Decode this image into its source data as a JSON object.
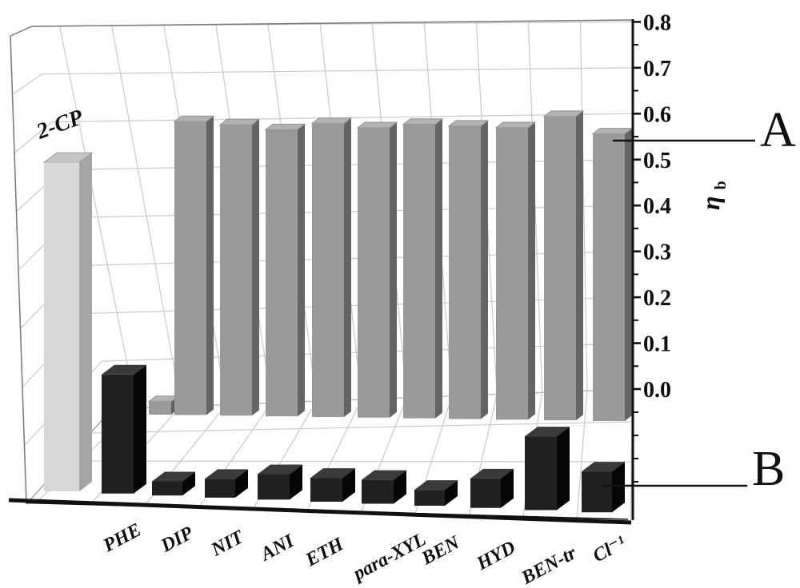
{
  "chart_data": {
    "type": "bar",
    "style": "3d-perspective two-row bar chart, white background, grey back row and black front row",
    "title": "",
    "xlabel": "",
    "ylabel_main": "η",
    "ylabel_sub": "b",
    "ylim": [
      0.0,
      0.8
    ],
    "y_tick_labels": [
      "0.0",
      "0.1",
      "0.2",
      "0.3",
      "0.4",
      "0.5",
      "0.6",
      "0.7",
      "0.8"
    ],
    "categories": [
      "2-CP",
      "PHE",
      "DIP",
      "NIT",
      "ANI",
      "ETH",
      "para-XYL",
      "BEN",
      "HYD",
      "BEN-tr",
      "Cl⁻¹"
    ],
    "x_axis_tick_labels": [
      "PHE",
      "DIP",
      "NIT",
      "ANI",
      "ETH",
      "para-XYL",
      "BEN",
      "HYD",
      "BEN-tr",
      "Cl⁻¹"
    ],
    "series": [
      {
        "name": "A",
        "row": "back",
        "color": "#9a9a9a",
        "values": [
          0.025,
          0.565,
          0.56,
          0.552,
          0.565,
          0.558,
          0.566,
          0.564,
          0.562,
          0.585,
          0.553
        ]
      },
      {
        "name": "B",
        "row": "front",
        "color": "#1e1e1e",
        "values": [
          0.58,
          0.21,
          0.025,
          0.033,
          0.045,
          0.042,
          0.042,
          0.028,
          0.052,
          0.13,
          0.072
        ]
      }
    ],
    "highlighted_bar": {
      "series": "B",
      "category": "2-CP",
      "label": "2-CP",
      "color": "#d8d8d8"
    },
    "annotations": [
      {
        "text": "A",
        "target": "back grey bar row",
        "level": 0.54
      },
      {
        "text": "B",
        "target": "front black bar row",
        "level": 0.05
      }
    ],
    "grid": true,
    "legend": "none"
  },
  "colors": {
    "back_bar_front": "#9a9a9a",
    "back_bar_side": "#646464",
    "back_bar_top": "#b3b3b3",
    "front_bar_front": "#202020",
    "front_bar_side": "#060606",
    "front_bar_top": "#3a3a3a",
    "highlight_front": "#d8d8d8",
    "highlight_side": "#a5a5a5",
    "highlight_top": "#c6c6c6",
    "grid_line": "#c9c9c9",
    "frame": "#111111"
  }
}
